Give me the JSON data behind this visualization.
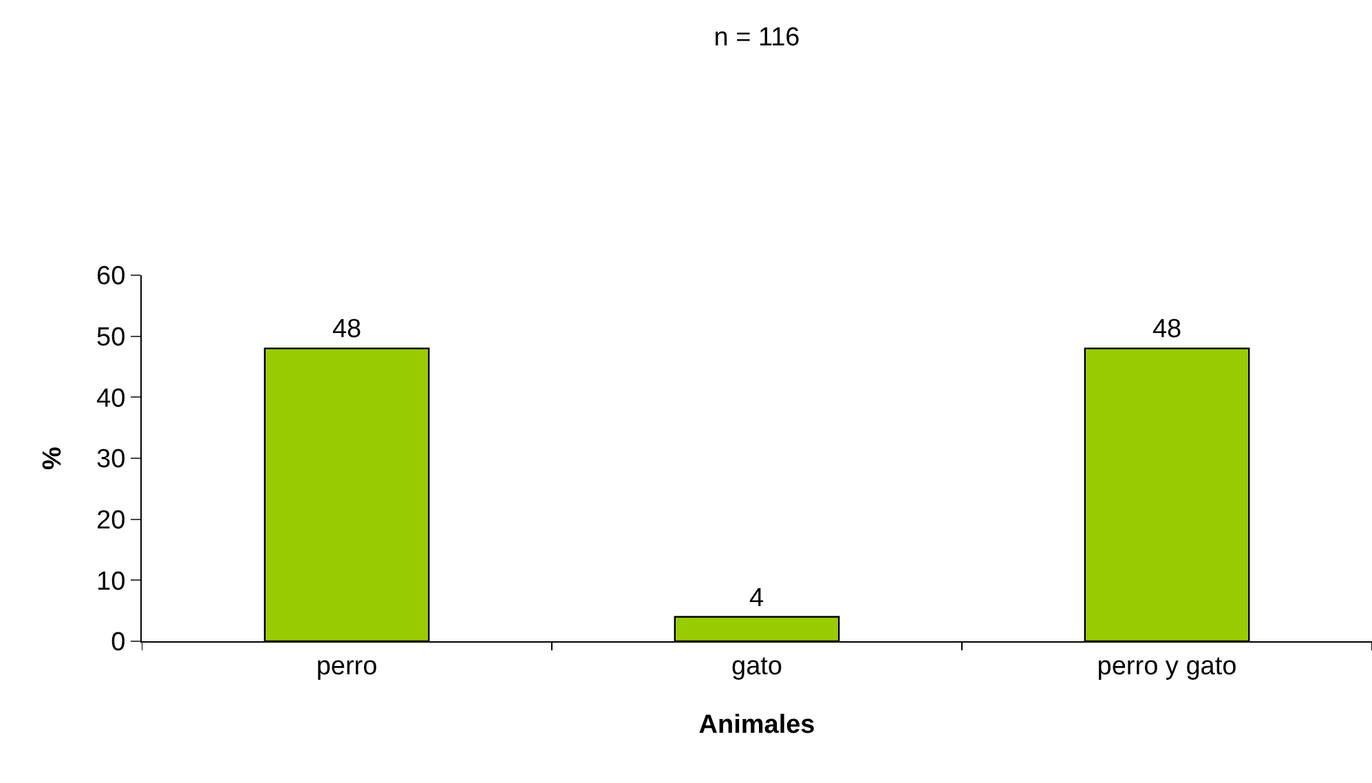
{
  "chart_data": {
    "type": "bar",
    "title": "n = 116",
    "xlabel": "Animales",
    "ylabel": "%",
    "categories": [
      "perro",
      "gato",
      "perro y gato"
    ],
    "series": [
      {
        "color": "#99cc00",
        "values": [
          48,
          4,
          48
        ]
      }
    ],
    "ylim": [
      0,
      60
    ],
    "yticks": [
      0,
      10,
      20,
      30,
      40,
      50,
      60
    ],
    "grid": false,
    "legend": false,
    "data_labels": true
  }
}
